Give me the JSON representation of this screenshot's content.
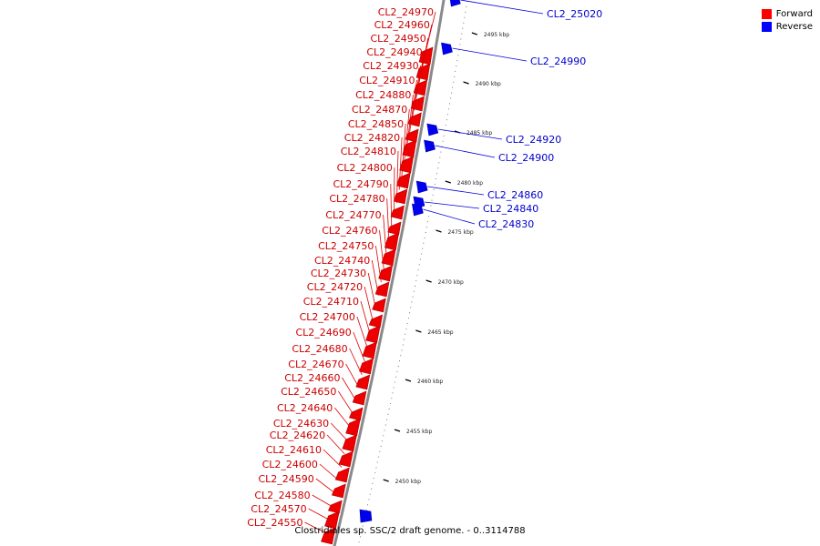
{
  "legend": {
    "forward_label": "Forward",
    "reverse_label": "Reverse",
    "forward_color": "#ff0000",
    "reverse_color": "#0000ff"
  },
  "caption": "Clostridiales sp. SSC/2 draft genome. - 0..3114788",
  "ticks": [
    "2450 kbp",
    "2455 kbp",
    "2460 kbp",
    "2465 kbp",
    "2470 kbp",
    "2475 kbp",
    "2480 kbp",
    "2485 kbp",
    "2490 kbp",
    "2495 kbp"
  ],
  "forward_genes": [
    "CL2_24970",
    "CL2_24960",
    "CL2_24950",
    "CL2_24940",
    "CL2_24930",
    "CL2_24910",
    "CL2_24880",
    "CL2_24870",
    "CL2_24850",
    "CL2_24820",
    "CL2_24810",
    "CL2_24800",
    "CL2_24790",
    "CL2_24780",
    "CL2_24770",
    "CL2_24760",
    "CL2_24750",
    "CL2_24740",
    "CL2_24730",
    "CL2_24720",
    "CL2_24710",
    "CL2_24700",
    "CL2_24690",
    "CL2_24680",
    "CL2_24670",
    "CL2_24660",
    "CL2_24650",
    "CL2_24640",
    "CL2_24630",
    "CL2_24620",
    "CL2_24610",
    "CL2_24600",
    "CL2_24590",
    "CL2_24580",
    "CL2_24570",
    "CL2_24550"
  ],
  "reverse_genes": [
    "CL2_25020",
    "CL2_24990",
    "CL2_24920",
    "CL2_24900",
    "CL2_24860",
    "CL2_24840",
    "CL2_24830"
  ]
}
